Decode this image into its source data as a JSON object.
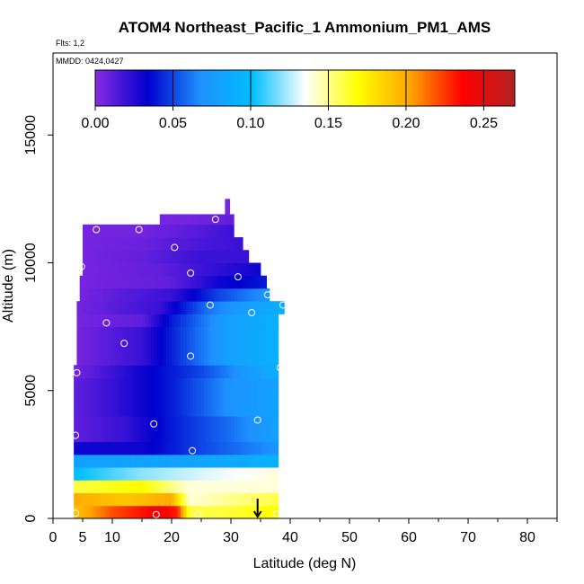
{
  "chart_data": {
    "type": "heatmap",
    "title": "ATOM4 Northeast_Pacific_1 Ammonium_PM1_AMS",
    "flights_label": "Flts: 1,2",
    "dates_label": "MMDD: 0424,0427",
    "xlabel": "Latitude (deg N)",
    "ylabel": "Altitude (m)",
    "xlim": [
      0,
      85
    ],
    "ylim": [
      0,
      17500
    ],
    "x_ticks": [
      0,
      10,
      20,
      30,
      40,
      50,
      60,
      70,
      80
    ],
    "x_tick_labels": [
      "0",
      "10",
      "20",
      "30",
      "40",
      "50",
      "60",
      "70",
      "80"
    ],
    "x_extra_tick": {
      "value": 5,
      "label": "5"
    },
    "x_minor_ticks": [
      5,
      15,
      25,
      35,
      45,
      55,
      65,
      75,
      85
    ],
    "y_ticks": [
      0,
      5000,
      10000,
      15000
    ],
    "y_tick_labels": [
      "0",
      "5000",
      "10000",
      "15000"
    ],
    "colorbar": {
      "range": [
        0,
        0.27
      ],
      "ticks": [
        0.0,
        0.05,
        0.1,
        0.15,
        0.2,
        0.25
      ],
      "tick_labels": [
        "0.00",
        "0.05",
        "0.10",
        "0.15",
        "0.20",
        "0.25"
      ],
      "colors": [
        "#8a2be2",
        "#0000cd",
        "#1e90ff",
        "#00bfff",
        "#ffffff",
        "#ffff00",
        "#ffa500",
        "#ff0000",
        "#b22222"
      ]
    },
    "arrow_marker": {
      "latitude": 34.5
    },
    "altitude_bands": [
      {
        "alt_min": 0,
        "alt_max": 500,
        "lat_min": 3.5,
        "lat_max": 38,
        "value_profile": [
          [
            3.5,
            0.19
          ],
          [
            10,
            0.22
          ],
          [
            18,
            0.24
          ],
          [
            21,
            0.23
          ],
          [
            23,
            0.16
          ],
          [
            28,
            0.16
          ],
          [
            38,
            0.17
          ]
        ]
      },
      {
        "alt_min": 500,
        "alt_max": 1000,
        "lat_min": 3.5,
        "lat_max": 38,
        "value_profile": [
          [
            3.5,
            0.2
          ],
          [
            12,
            0.19
          ],
          [
            20,
            0.2
          ],
          [
            23,
            0.14
          ],
          [
            30,
            0.15
          ],
          [
            38,
            0.16
          ]
        ]
      },
      {
        "alt_min": 1000,
        "alt_max": 1500,
        "lat_min": 3.5,
        "lat_max": 38,
        "value_profile": [
          [
            3.5,
            0.16
          ],
          [
            15,
            0.17
          ],
          [
            23,
            0.14
          ],
          [
            38,
            0.14
          ]
        ]
      },
      {
        "alt_min": 1500,
        "alt_max": 2000,
        "lat_min": 3.5,
        "lat_max": 38,
        "value_profile": [
          [
            3.5,
            0.1
          ],
          [
            15,
            0.12
          ],
          [
            25,
            0.13
          ],
          [
            38,
            0.14
          ]
        ]
      },
      {
        "alt_min": 2000,
        "alt_max": 2500,
        "lat_min": 3.5,
        "lat_max": 38,
        "value_profile": [
          [
            3.5,
            0.08
          ],
          [
            20,
            0.08
          ],
          [
            38,
            0.09
          ]
        ]
      },
      {
        "alt_min": 2500,
        "alt_max": 3000,
        "lat_min": 3.5,
        "lat_max": 38,
        "value_profile": [
          [
            3.5,
            0.03
          ],
          [
            15,
            0.03
          ],
          [
            25,
            0.05
          ],
          [
            38,
            0.07
          ]
        ]
      },
      {
        "alt_min": 3000,
        "alt_max": 4000,
        "lat_min": 3.5,
        "lat_max": 38,
        "value_profile": [
          [
            3.5,
            0.01
          ],
          [
            12,
            0.02
          ],
          [
            20,
            0.04
          ],
          [
            30,
            0.06
          ],
          [
            38,
            0.08
          ]
        ]
      },
      {
        "alt_min": 4000,
        "alt_max": 5500,
        "lat_min": 3.5,
        "lat_max": 38,
        "value_profile": [
          [
            3.5,
            0.01
          ],
          [
            10,
            0.02
          ],
          [
            20,
            0.04
          ],
          [
            30,
            0.07
          ],
          [
            38,
            0.08
          ]
        ]
      },
      {
        "alt_min": 5500,
        "alt_max": 6000,
        "lat_min": 3.5,
        "lat_max": 38,
        "value_profile": [
          [
            3.5,
            0.005
          ],
          [
            15,
            0.03
          ],
          [
            25,
            0.05
          ],
          [
            38,
            0.09
          ]
        ]
      },
      {
        "alt_min": 6000,
        "alt_max": 7500,
        "lat_min": 4,
        "lat_max": 38,
        "value_profile": [
          [
            4,
            0.005
          ],
          [
            15,
            0.02
          ],
          [
            22,
            0.05
          ],
          [
            30,
            0.08
          ],
          [
            38,
            0.09
          ]
        ]
      },
      {
        "alt_min": 7500,
        "alt_max": 8000,
        "lat_min": 4,
        "lat_max": 38,
        "value_profile": [
          [
            4,
            0.005
          ],
          [
            15,
            0.01
          ],
          [
            20,
            0.04
          ],
          [
            30,
            0.08
          ],
          [
            38,
            0.09
          ]
        ]
      },
      {
        "alt_min": 8000,
        "alt_max": 8500,
        "lat_min": 4,
        "lat_max": 39,
        "value_profile": [
          [
            4,
            0.005
          ],
          [
            18,
            0.02
          ],
          [
            26,
            0.06
          ],
          [
            34,
            0.08
          ],
          [
            39,
            0.09
          ]
        ]
      },
      {
        "alt_min": 8500,
        "alt_max": 9000,
        "lat_min": 4.5,
        "lat_max": 36.5,
        "value_profile": [
          [
            4.5,
            0.005
          ],
          [
            20,
            0.02
          ],
          [
            28,
            0.05
          ],
          [
            36,
            0.07
          ]
        ]
      },
      {
        "alt_min": 9000,
        "alt_max": 9500,
        "lat_min": 4.5,
        "lat_max": 36,
        "value_profile": [
          [
            4.5,
            0.005
          ],
          [
            20,
            0.01
          ],
          [
            28,
            0.03
          ],
          [
            36,
            0.04
          ]
        ]
      },
      {
        "alt_min": 9500,
        "alt_max": 10000,
        "lat_min": 5,
        "lat_max": 35,
        "value_profile": [
          [
            5,
            0.005
          ],
          [
            18,
            0.01
          ],
          [
            26,
            0.02
          ],
          [
            35,
            0.03
          ]
        ]
      },
      {
        "alt_min": 10000,
        "alt_max": 10500,
        "lat_min": 5,
        "lat_max": 33,
        "value_profile": [
          [
            5,
            0.005
          ],
          [
            16,
            0.01
          ],
          [
            25,
            0.02
          ],
          [
            33,
            0.02
          ]
        ]
      },
      {
        "alt_min": 10500,
        "alt_max": 11000,
        "lat_min": 5,
        "lat_max": 32,
        "value_profile": [
          [
            5,
            0.005
          ],
          [
            15,
            0.008
          ],
          [
            24,
            0.015
          ],
          [
            32,
            0.02
          ]
        ]
      },
      {
        "alt_min": 11000,
        "alt_max": 11500,
        "lat_min": 5,
        "lat_max": 30.5,
        "value_profile": [
          [
            5,
            0.005
          ],
          [
            15,
            0.006
          ],
          [
            24,
            0.012
          ],
          [
            30.5,
            0.02
          ]
        ]
      },
      {
        "alt_min": 11500,
        "alt_max": 11900,
        "lat_min": 18,
        "lat_max": 30.5,
        "value_profile": [
          [
            18,
            0.005
          ],
          [
            24,
            0.006
          ],
          [
            30.5,
            0.01
          ]
        ]
      },
      {
        "alt_min": 11900,
        "alt_max": 12500,
        "lat_min": 29,
        "lat_max": 29.8,
        "value_profile": [
          [
            29,
            0.005
          ],
          [
            29.8,
            0.005
          ]
        ]
      }
    ],
    "flight_points": [
      {
        "lat": 3.8,
        "alt": 200
      },
      {
        "lat": 17.4,
        "alt": 150
      },
      {
        "lat": 24.5,
        "alt": 150
      },
      {
        "lat": 37.7,
        "alt": 180
      },
      {
        "lat": 23.5,
        "alt": 2650
      },
      {
        "lat": 17,
        "alt": 3700
      },
      {
        "lat": 34.5,
        "alt": 3850
      },
      {
        "lat": 3.8,
        "alt": 3250
      },
      {
        "lat": 4,
        "alt": 5700
      },
      {
        "lat": 23.2,
        "alt": 6350
      },
      {
        "lat": 38.3,
        "alt": 5900
      },
      {
        "lat": 12,
        "alt": 6850
      },
      {
        "lat": 9,
        "alt": 7650
      },
      {
        "lat": 33.5,
        "alt": 8050
      },
      {
        "lat": 26.5,
        "alt": 8350
      },
      {
        "lat": 38.8,
        "alt": 8350
      },
      {
        "lat": 36.2,
        "alt": 8750
      },
      {
        "lat": 23.2,
        "alt": 9600
      },
      {
        "lat": 31.2,
        "alt": 9450
      },
      {
        "lat": 4.8,
        "alt": 9850
      },
      {
        "lat": 20.5,
        "alt": 10600
      },
      {
        "lat": 7.3,
        "alt": 11300
      },
      {
        "lat": 14.5,
        "alt": 11300
      },
      {
        "lat": 27.4,
        "alt": 11700
      }
    ]
  }
}
